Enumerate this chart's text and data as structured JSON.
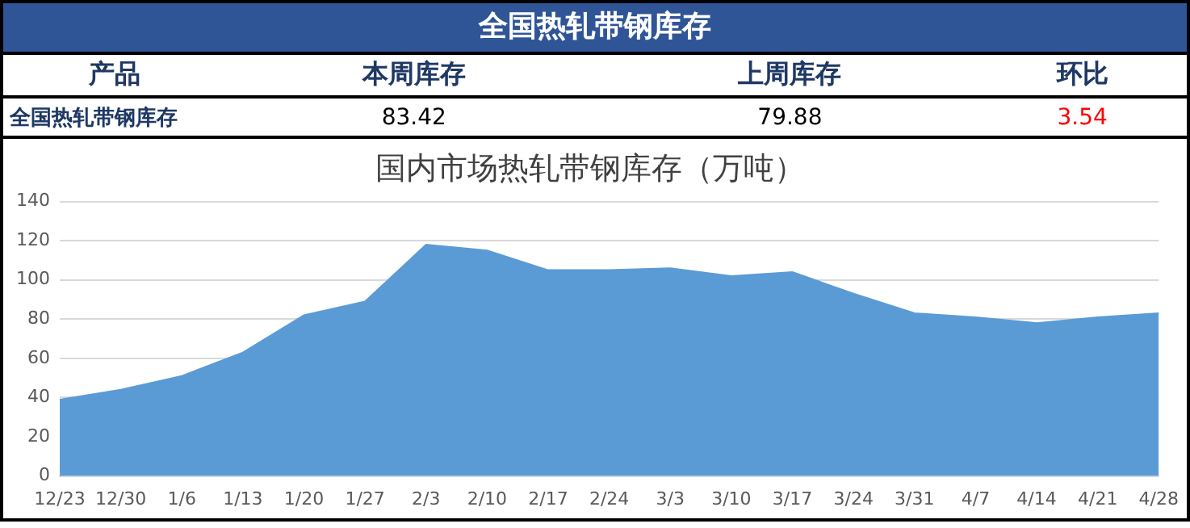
{
  "chart_data": [
    {
      "type": "other",
      "title": "全国热轧带钢库存",
      "ylabel": "产品",
      "categories": [
        "本周库存",
        "上周库存",
        "环比"
      ],
      "annotations": [
        "全国热轧带钢库存"
      ],
      "values": [
        83.42,
        79.88,
        3.54
      ],
      "data_labels": true,
      "colors": [
        "#000000",
        "#000000",
        "#ff0000"
      ]
    },
    {
      "type": "area",
      "title": "国内市场热轧带钢库存（万吨）",
      "categories": [
        "12/23",
        "12/30",
        "1/6",
        "1/13",
        "1/20",
        "1/27",
        "2/3",
        "2/10",
        "2/17",
        "2/24",
        "3/3",
        "3/10",
        "3/17",
        "3/24",
        "3/31",
        "4/7",
        "4/14",
        "4/21",
        "4/28"
      ],
      "series": [
        {
          "color": "#5b9bd5",
          "values": [
            39,
            44,
            51,
            63,
            82,
            89,
            118,
            115,
            105,
            105,
            106,
            102,
            104,
            93,
            83,
            81,
            78,
            81,
            83
          ]
        }
      ],
      "ylim": [
        0,
        140
      ],
      "yticks": [
        0,
        20,
        40,
        60,
        80,
        100,
        120,
        140
      ],
      "grid": "y",
      "legend": false
    }
  ]
}
